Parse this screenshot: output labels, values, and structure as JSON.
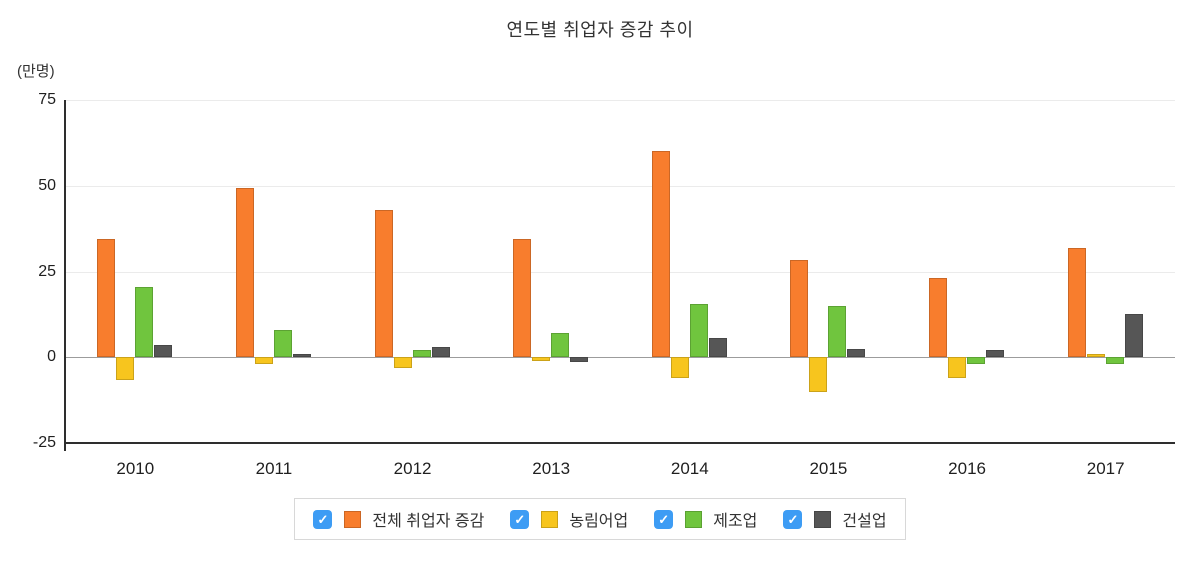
{
  "title": "연도별 취업자 증감 추이",
  "unit_label": "(만명)",
  "y_axis": {
    "ticks": [
      75,
      50,
      25,
      0,
      -25
    ],
    "min": -25,
    "max": 75
  },
  "legend": {
    "checkbox_color": "#3D9CF4",
    "all_checked": true
  },
  "chart_data": {
    "type": "bar",
    "title": "연도별 취업자 증감 추이",
    "unit": "만명",
    "categories": [
      "2010",
      "2011",
      "2012",
      "2013",
      "2014",
      "2015",
      "2016",
      "2017"
    ],
    "series": [
      {
        "name": "전체 취업자 증감",
        "color": "#F87D2D",
        "checked": true,
        "values": [
          34.5,
          49.5,
          43,
          34.5,
          60,
          28.5,
          23,
          32
        ]
      },
      {
        "name": "농림어업",
        "color": "#F7C51E",
        "checked": true,
        "values": [
          -6.5,
          -2,
          -3,
          -1,
          -6,
          -10,
          -6,
          1
        ]
      },
      {
        "name": "제조업",
        "color": "#70C53E",
        "checked": true,
        "values": [
          20.5,
          8,
          2,
          7,
          15.5,
          15,
          -2,
          -2
        ]
      },
      {
        "name": "건설업",
        "color": "#565656",
        "checked": true,
        "values": [
          3.5,
          1,
          3,
          -1.5,
          5.5,
          2.5,
          2,
          12.5
        ]
      }
    ],
    "ylim": [
      -25,
      75
    ],
    "yticks": [
      75,
      50,
      25,
      0,
      -25
    ],
    "grid": true,
    "legend_position": "bottom"
  }
}
